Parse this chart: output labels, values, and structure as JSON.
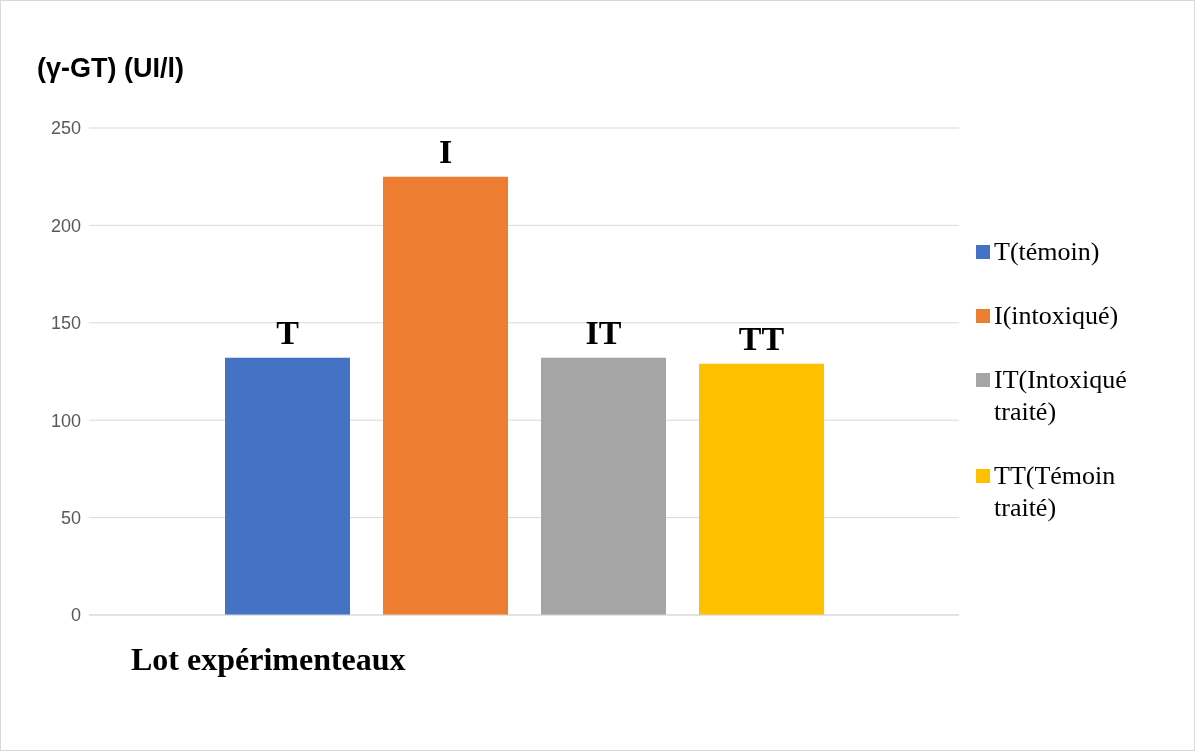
{
  "chart_data": {
    "type": "bar",
    "ylabel": "(γ-GT) (UI/l)",
    "xlabel": "Lot expérimenteaux",
    "categories": [
      null
    ],
    "series": [
      {
        "name": "T(témoin)",
        "color": "#4472c4",
        "values": [
          132
        ],
        "value_labels": [
          "T"
        ]
      },
      {
        "name": "I(intoxiqué)",
        "color": "#ed7d31",
        "values": [
          225
        ],
        "value_labels": [
          "I"
        ]
      },
      {
        "name": "IT(Intoxiqué traité)",
        "color": "#a5a5a5",
        "values": [
          132
        ],
        "value_labels": [
          "IT"
        ]
      },
      {
        "name": "TT(Témoin traité)",
        "color": "#ffc000",
        "values": [
          129
        ],
        "value_labels": [
          "TT"
        ]
      }
    ],
    "ylim": [
      0,
      250
    ],
    "yticks": [
      0,
      50,
      100,
      150,
      200,
      250
    ],
    "grid": "y",
    "legend": "right"
  }
}
